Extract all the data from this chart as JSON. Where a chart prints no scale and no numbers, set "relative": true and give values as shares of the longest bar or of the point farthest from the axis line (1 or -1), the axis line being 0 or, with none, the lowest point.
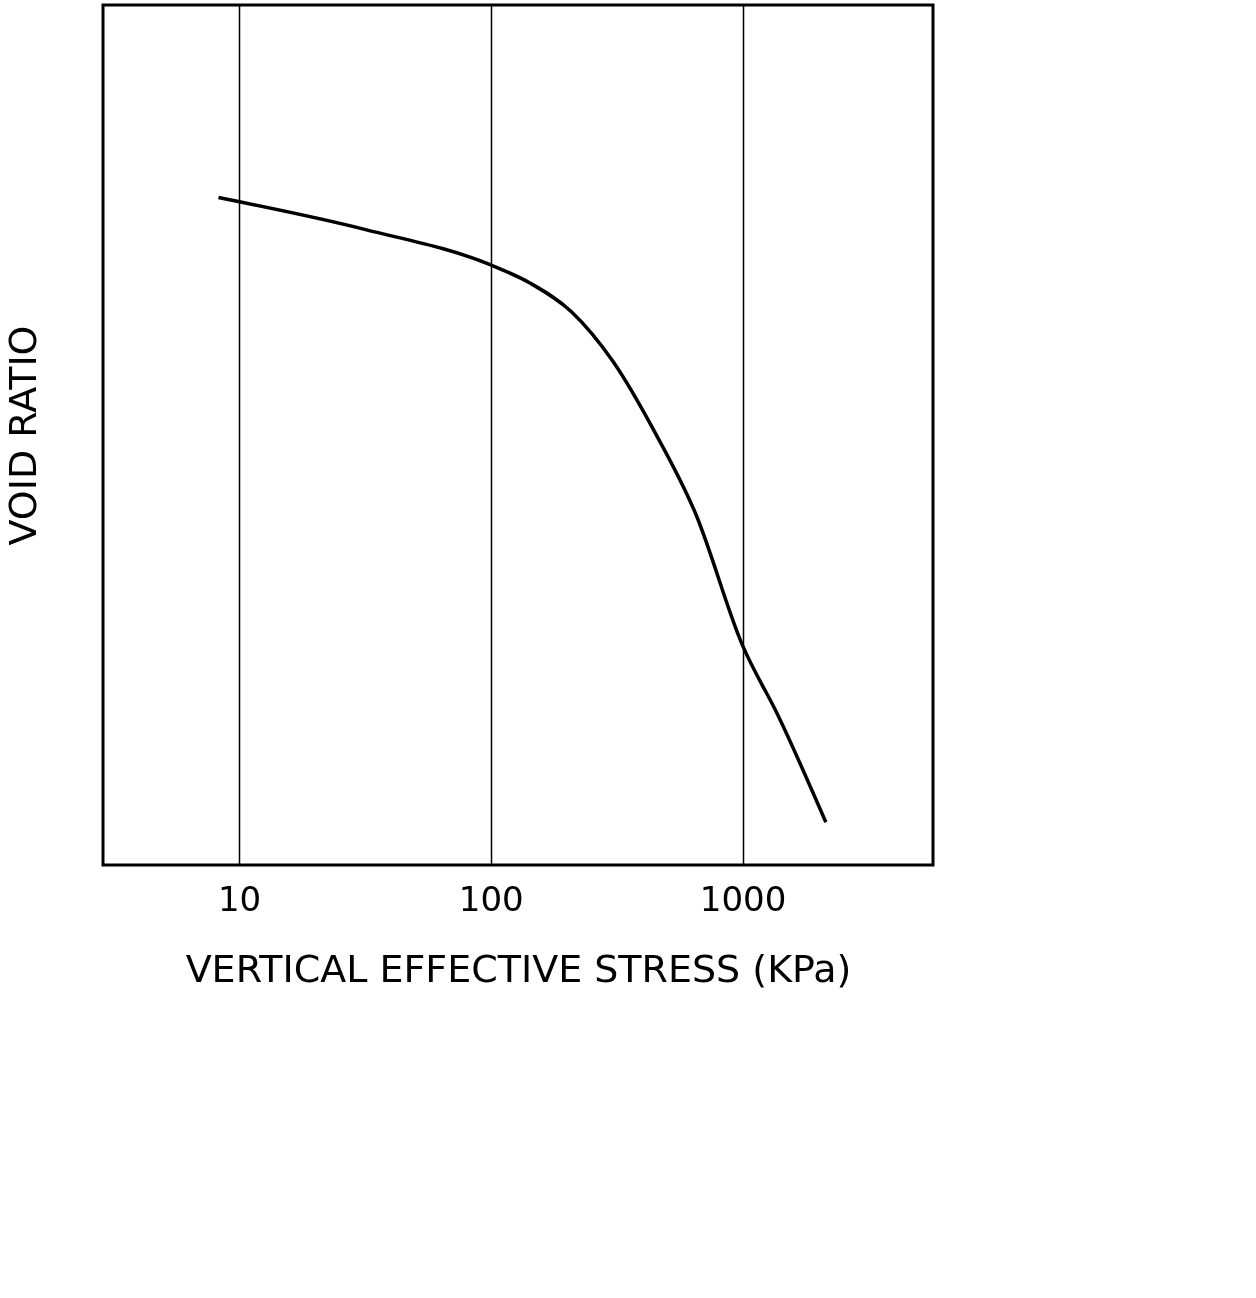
{
  "chart_data": {
    "type": "line",
    "xlabel": "VERTICAL EFFECTIVE STRESS (KPa)",
    "ylabel": "VOID RATIO",
    "relative": true,
    "log": "x",
    "grid": "x",
    "xlim": [
      2.88,
      5710
    ],
    "xticks": [
      10,
      100,
      1000
    ],
    "x": [
      8.28,
      31.8,
      100,
      143,
      209,
      305,
      446,
      650,
      1000,
      1384,
      2143
    ],
    "series": [
      {
        "color": "#000000",
        "values": [
          1,
          0.952,
          0.899,
          0.872,
          0.829,
          0.755,
          0.65,
          0.527,
          0.329,
          0.224,
          0.064
        ]
      }
    ]
  }
}
